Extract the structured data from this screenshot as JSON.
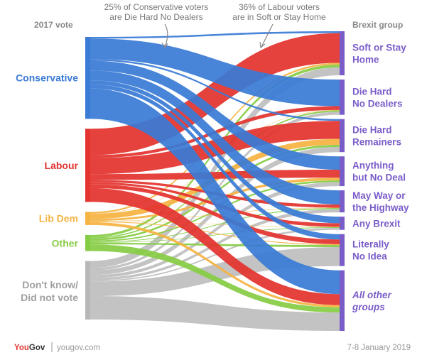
{
  "header": {
    "left_title": "2017 vote",
    "right_title": "Brexit group"
  },
  "annotations": [
    {
      "line1": "25% of Conservative voters",
      "line2": "are Die Hard No Dealers"
    },
    {
      "line1": "36% of Labour voters",
      "line2": "are in Soft or Stay Home"
    }
  ],
  "sources": [
    {
      "id": "con",
      "label": "Conservative",
      "color": "#3a7bd5"
    },
    {
      "id": "lab",
      "label": "Labour",
      "color": "#e3342f"
    },
    {
      "id": "ld",
      "label": "Lib Dem",
      "color": "#f5b342"
    },
    {
      "id": "oth",
      "label": "Other",
      "color": "#86cc45"
    },
    {
      "id": "dk",
      "label": "Don't know/ Did not vote",
      "color": "#b8b8b8"
    }
  ],
  "targets": [
    {
      "id": "soft",
      "label_lines": [
        "Soft or Stay",
        "Home"
      ],
      "italic": false
    },
    {
      "id": "dhnd",
      "label_lines": [
        "Die Hard",
        "No Dealers"
      ],
      "italic": false
    },
    {
      "id": "dhr",
      "label_lines": [
        "Die Hard",
        "Remainers"
      ],
      "italic": false
    },
    {
      "id": "abnd",
      "label_lines": [
        "Anything",
        "but No Deal"
      ],
      "italic": false
    },
    {
      "id": "mwh",
      "label_lines": [
        "May Way or",
        "the Highway"
      ],
      "italic": false
    },
    {
      "id": "anyb",
      "label_lines": [
        "Any Brexit"
      ],
      "italic": false
    },
    {
      "id": "lni",
      "label_lines": [
        "Literally",
        "No Idea"
      ],
      "italic": false
    },
    {
      "id": "aog",
      "label_lines": [
        "All other",
        "groups"
      ],
      "italic": true
    }
  ],
  "target_bar_color": "#7a5cc8",
  "flows": [
    [
      "con",
      "soft",
      2
    ],
    [
      "con",
      "dhnd",
      25
    ],
    [
      "con",
      "dhr",
      2
    ],
    [
      "con",
      "abnd",
      12
    ],
    [
      "con",
      "mwh",
      12
    ],
    [
      "con",
      "anyb",
      5
    ],
    [
      "con",
      "lni",
      5
    ],
    [
      "con",
      "aog",
      37
    ],
    [
      "lab",
      "soft",
      36
    ],
    [
      "lab",
      "dhnd",
      4
    ],
    [
      "lab",
      "dhr",
      22
    ],
    [
      "lab",
      "abnd",
      8
    ],
    [
      "lab",
      "mwh",
      3
    ],
    [
      "lab",
      "anyb",
      3
    ],
    [
      "lab",
      "lni",
      5
    ],
    [
      "lab",
      "aog",
      19
    ],
    [
      "ld",
      "soft",
      12
    ],
    [
      "ld",
      "dhnd",
      2
    ],
    [
      "ld",
      "dhr",
      40
    ],
    [
      "ld",
      "abnd",
      15
    ],
    [
      "ld",
      "mwh",
      2
    ],
    [
      "ld",
      "anyb",
      2
    ],
    [
      "ld",
      "lni",
      5
    ],
    [
      "ld",
      "aog",
      22
    ],
    [
      "oth",
      "soft",
      15
    ],
    [
      "oth",
      "dhnd",
      7
    ],
    [
      "oth",
      "dhr",
      12
    ],
    [
      "oth",
      "abnd",
      8
    ],
    [
      "oth",
      "mwh",
      4
    ],
    [
      "oth",
      "anyb",
      3
    ],
    [
      "oth",
      "lni",
      10
    ],
    [
      "oth",
      "aog",
      41
    ],
    [
      "dk",
      "soft",
      12
    ],
    [
      "dk",
      "dhnd",
      4
    ],
    [
      "dk",
      "dhr",
      8
    ],
    [
      "dk",
      "abnd",
      5
    ],
    [
      "dk",
      "mwh",
      4
    ],
    [
      "dk",
      "anyb",
      2
    ],
    [
      "dk",
      "lni",
      25
    ],
    [
      "dk",
      "aog",
      40
    ]
  ],
  "footer": {
    "logo_you": "You",
    "logo_gov": "Gov",
    "site": "yougov.com",
    "date": "7-8 January 2019"
  }
}
